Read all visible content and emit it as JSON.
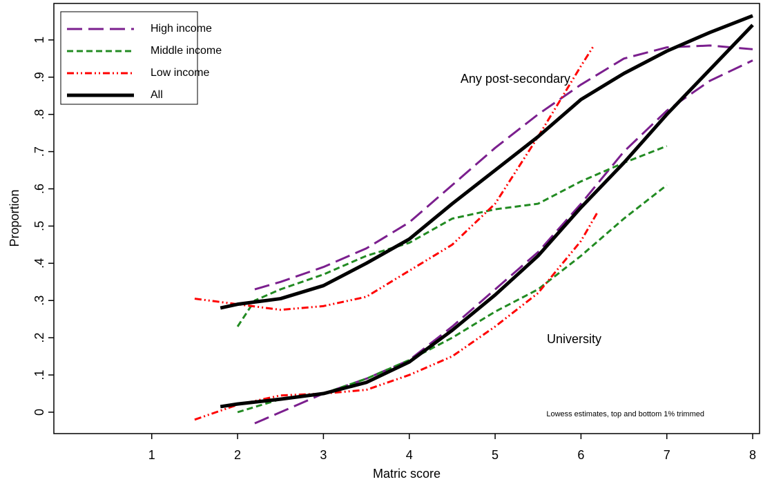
{
  "chart_data": {
    "type": "line",
    "x_label": "Matric score",
    "y_label": "Proportion",
    "annotations": [
      "Any post-secondary",
      "University",
      "Lowess estimates, top and bottom 1% trimmed"
    ],
    "xlim": [
      -0.14,
      8.08
    ],
    "xticks": [
      1,
      2,
      3,
      4,
      5,
      6,
      7,
      8
    ],
    "ylim": [
      -0.0575,
      1.098
    ],
    "yticks": [
      0,
      {
        "value": 0.1,
        "label": ".1"
      },
      {
        "value": 0.2,
        "label": ".2"
      },
      {
        "value": 0.3,
        "label": ".3"
      },
      {
        "value": 0.4,
        "label": ".4"
      },
      {
        "value": 0.5,
        "label": ".5"
      },
      {
        "value": 0.6,
        "label": ".6"
      },
      {
        "value": 0.7,
        "label": ".7"
      },
      {
        "value": 0.8,
        "label": ".8"
      },
      {
        "value": 0.9,
        "label": ".9"
      },
      1
    ],
    "legend": "upper left",
    "series": [
      {
        "name": "High income",
        "color": "#7b1f8e",
        "dash": "22 9",
        "width": 3,
        "curves": [
          {
            "x": [
              2.2,
              2.5,
              3,
              3.5,
              4,
              4.5,
              5,
              5.5,
              6,
              6.5,
              7,
              7.5,
              8
            ],
            "values": [
              0.33,
              0.35,
              0.39,
              0.44,
              0.51,
              0.61,
              0.71,
              0.8,
              0.88,
              0.95,
              0.98,
              0.985,
              0.975
            ]
          },
          {
            "x": [
              2.2,
              2.5,
              3,
              3.5,
              4,
              4.5,
              5,
              5.5,
              6,
              6.5,
              7,
              7.5,
              8
            ],
            "values": [
              -0.03,
              0.0,
              0.05,
              0.09,
              0.14,
              0.23,
              0.33,
              0.43,
              0.56,
              0.7,
              0.81,
              0.89,
              0.945
            ]
          }
        ]
      },
      {
        "name": "Middle income",
        "color": "#228b22",
        "dash": "9 5",
        "width": 3,
        "curves": [
          {
            "x": [
              2,
              2.2,
              2.5,
              3,
              3.5,
              4,
              4.5,
              5,
              5.5,
              6,
              6.5,
              7
            ],
            "values": [
              0.23,
              0.3,
              0.33,
              0.37,
              0.42,
              0.455,
              0.52,
              0.545,
              0.56,
              0.62,
              0.67,
              0.715
            ]
          },
          {
            "x": [
              2,
              2.5,
              3,
              3.5,
              4,
              4.5,
              5,
              5.5,
              6,
              6.5,
              7
            ],
            "values": [
              0.0,
              0.035,
              0.05,
              0.09,
              0.14,
              0.2,
              0.27,
              0.33,
              0.42,
              0.52,
              0.61
            ]
          }
        ]
      },
      {
        "name": "Low income",
        "color": "#ff0000",
        "dash": "10 4 2 4 2 4",
        "width": 3,
        "curves": [
          {
            "x": [
              1.5,
              2,
              2.5,
              3,
              3.5,
              4,
              4.5,
              5,
              5.5,
              6,
              6.15
            ],
            "values": [
              0.305,
              0.29,
              0.275,
              0.285,
              0.31,
              0.38,
              0.45,
              0.56,
              0.74,
              0.93,
              0.985
            ]
          },
          {
            "x": [
              1.5,
              2,
              2.5,
              3,
              3.5,
              4,
              4.5,
              5,
              5.5,
              6,
              6.2
            ],
            "values": [
              -0.02,
              0.02,
              0.045,
              0.05,
              0.06,
              0.1,
              0.15,
              0.23,
              0.32,
              0.46,
              0.54
            ]
          }
        ]
      },
      {
        "name": "All",
        "color": "#000000",
        "dash": "none",
        "width": 5,
        "curves": [
          {
            "x": [
              1.8,
              2,
              2.5,
              3,
              3.5,
              4,
              4.5,
              5,
              5.5,
              6,
              6.5,
              7,
              7.5,
              8
            ],
            "values": [
              0.28,
              0.29,
              0.305,
              0.34,
              0.4,
              0.465,
              0.56,
              0.65,
              0.74,
              0.84,
              0.91,
              0.97,
              1.02,
              1.065
            ]
          },
          {
            "x": [
              1.8,
              2,
              2.5,
              3,
              3.5,
              4,
              4.5,
              5,
              5.5,
              6,
              6.5,
              7,
              7.5,
              8
            ],
            "values": [
              0.015,
              0.022,
              0.035,
              0.05,
              0.08,
              0.135,
              0.22,
              0.315,
              0.42,
              0.55,
              0.67,
              0.8,
              0.92,
              1.04
            ]
          }
        ]
      }
    ]
  }
}
